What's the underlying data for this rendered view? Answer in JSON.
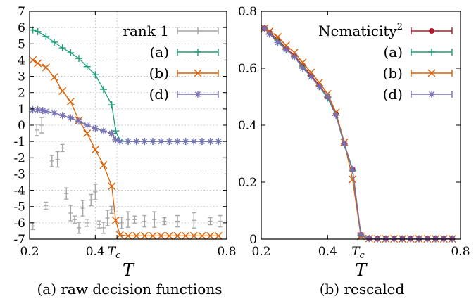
{
  "colors": {
    "gray": "#a6a6a6",
    "green": "#1b9e77",
    "orange": "#d95f02",
    "purple": "#7570b3",
    "red": "#b2182b"
  },
  "chart_data": [
    {
      "type": "line",
      "caption": "(a) raw decision functions",
      "xlabel": "T",
      "ylabel": "",
      "xlim": [
        0.2,
        0.8
      ],
      "ylim": [
        -7,
        7
      ],
      "xticks": [
        {
          "v": 0.2,
          "label": "0.2"
        },
        {
          "v": 0.4,
          "label": "0.4"
        },
        {
          "v": 0.8,
          "label": "0.8"
        }
      ],
      "yticks": [
        -7,
        -6,
        -5,
        -4,
        -3,
        -2,
        -1,
        0,
        1,
        2,
        3,
        4,
        5,
        6,
        7
      ],
      "special_tick": {
        "v": 0.466,
        "label": "T",
        "sub": "c"
      },
      "grid": "dotted",
      "legend": "top-right",
      "series": [
        {
          "name": "rank 1",
          "style": "errorbar",
          "color": "#a6a6a6",
          "x": [
            0.21,
            0.222,
            0.237,
            0.25,
            0.268,
            0.285,
            0.3,
            0.312,
            0.325,
            0.337,
            0.35,
            0.362,
            0.375,
            0.387,
            0.4,
            0.412,
            0.425,
            0.437,
            0.45,
            0.48,
            0.5,
            0.52,
            0.55,
            0.58,
            0.61,
            0.65,
            0.7,
            0.75,
            0.78
          ],
          "y": [
            -6.2,
            -0.3,
            0,
            -4.95,
            -2.2,
            -2.1,
            -1.4,
            -4.2,
            -5.4,
            -5.8,
            -6.3,
            -5.1,
            -6,
            -4.6,
            -4.1,
            -6.1,
            -6.3,
            -5.7,
            -5.2,
            -6,
            -5.8,
            -5.8,
            -5.9,
            -5.8,
            -5.9,
            -5.9,
            -5.85,
            -5.9,
            -5.9
          ]
        },
        {
          "name": "(a)",
          "marker": "plus",
          "color": "#1b9e77",
          "x": [
            0.21,
            0.225,
            0.25,
            0.275,
            0.3,
            0.325,
            0.35,
            0.375,
            0.4,
            0.425,
            0.45,
            0.462,
            0.475,
            0.5,
            0.525,
            0.55,
            0.575,
            0.6,
            0.625,
            0.65,
            0.675,
            0.7,
            0.725,
            0.75,
            0.775
          ],
          "y": [
            5.85,
            5.75,
            5.45,
            5.1,
            4.75,
            4.45,
            4.1,
            3.6,
            3.1,
            2.2,
            1.25,
            -0.35,
            -0.95,
            -1,
            -1,
            -1,
            -1,
            -1,
            -1,
            -1,
            -1,
            -1,
            -1,
            -1,
            -1
          ]
        },
        {
          "name": "(b)",
          "marker": "x",
          "color": "#d95f02",
          "x": [
            0.21,
            0.225,
            0.25,
            0.275,
            0.3,
            0.325,
            0.35,
            0.375,
            0.4,
            0.425,
            0.45,
            0.462,
            0.475,
            0.5,
            0.525,
            0.55,
            0.575,
            0.6,
            0.625,
            0.65,
            0.675,
            0.7,
            0.725,
            0.75,
            0.775
          ],
          "y": [
            4.0,
            3.8,
            3.55,
            2.95,
            2.1,
            1.45,
            0.3,
            -0.5,
            -1.5,
            -2.45,
            -3.75,
            -5.85,
            -6.75,
            -6.8,
            -6.8,
            -6.8,
            -6.8,
            -6.8,
            -6.8,
            -6.8,
            -6.8,
            -6.8,
            -6.8,
            -6.8,
            -6.8
          ]
        },
        {
          "name": "(d)",
          "marker": "star",
          "color": "#7570b3",
          "x": [
            0.21,
            0.225,
            0.24,
            0.25,
            0.275,
            0.3,
            0.325,
            0.35,
            0.375,
            0.4,
            0.425,
            0.45,
            0.462,
            0.475,
            0.5,
            0.525,
            0.55,
            0.575,
            0.6,
            0.625,
            0.65,
            0.675,
            0.7,
            0.725,
            0.75,
            0.775
          ],
          "y": [
            0.95,
            0.95,
            0.9,
            0.85,
            0.75,
            0.6,
            0.45,
            0.25,
            0,
            -0.2,
            -0.35,
            -0.5,
            -0.9,
            -1,
            -1,
            -1,
            -1,
            -1,
            -1,
            -1,
            -1,
            -1,
            -1,
            -1,
            -1,
            -1
          ]
        }
      ]
    },
    {
      "type": "line",
      "caption": "(b) rescaled",
      "xlabel": "T",
      "ylabel": "",
      "xlim": [
        0.2,
        0.8
      ],
      "ylim": [
        0,
        0.8
      ],
      "xticks": [
        {
          "v": 0.2,
          "label": "0.2"
        },
        {
          "v": 0.4,
          "label": "0.4"
        },
        {
          "v": 0.8,
          "label": "0.8"
        }
      ],
      "yticks": [
        0,
        0.2,
        0.4,
        0.6,
        0.8
      ],
      "special_tick": {
        "v": 0.5,
        "label": "T",
        "sub": "c"
      },
      "legend": "top-right",
      "series": [
        {
          "name": "Nematicity",
          "name_sup": "2",
          "marker": "circle",
          "color": "#b2182b",
          "x": [
            0.21,
            0.225,
            0.25,
            0.275,
            0.3,
            0.325,
            0.35,
            0.375,
            0.4,
            0.425,
            0.45,
            0.475,
            0.5,
            0.525,
            0.55,
            0.575,
            0.6,
            0.625,
            0.65,
            0.675,
            0.7,
            0.725,
            0.75,
            0.775
          ],
          "y": [
            0.74,
            0.725,
            0.7,
            0.67,
            0.645,
            0.61,
            0.575,
            0.54,
            0.5,
            0.44,
            0.335,
            0.245,
            0.015,
            0.002,
            0.001,
            0.001,
            0.001,
            0.001,
            0.001,
            0.001,
            0.001,
            0.001,
            0.001,
            0.001
          ]
        },
        {
          "name": "(a)",
          "marker": "plus",
          "color": "#1b9e77",
          "x": [
            0.21,
            0.225,
            0.25,
            0.275,
            0.3,
            0.325,
            0.35,
            0.375,
            0.4,
            0.425,
            0.45,
            0.475,
            0.5,
            0.525,
            0.55,
            0.575,
            0.6,
            0.625,
            0.65,
            0.675,
            0.7,
            0.725,
            0.75,
            0.775
          ],
          "y": [
            0.74,
            0.72,
            0.695,
            0.665,
            0.64,
            0.605,
            0.57,
            0.535,
            0.495,
            0.435,
            0.33,
            0.24,
            0.012,
            0.002,
            0.001,
            0.001,
            0.001,
            0.001,
            0.001,
            0.001,
            0.001,
            0.001,
            0.001,
            0.001
          ]
        },
        {
          "name": "(b)",
          "marker": "x",
          "color": "#d95f02",
          "x": [
            0.21,
            0.225,
            0.25,
            0.275,
            0.3,
            0.325,
            0.35,
            0.375,
            0.4,
            0.425,
            0.45,
            0.475,
            0.5,
            0.525,
            0.55,
            0.575,
            0.6,
            0.625,
            0.65,
            0.675,
            0.7,
            0.725,
            0.75,
            0.775
          ],
          "y": [
            0.74,
            0.73,
            0.71,
            0.68,
            0.655,
            0.62,
            0.585,
            0.55,
            0.51,
            0.445,
            0.34,
            0.21,
            0.01,
            0.002,
            0.001,
            0.001,
            0.001,
            0.001,
            0.001,
            0.001,
            0.001,
            0.001,
            0.001,
            0.001
          ]
        },
        {
          "name": "(d)",
          "marker": "star",
          "color": "#7570b3",
          "x": [
            0.21,
            0.225,
            0.25,
            0.275,
            0.3,
            0.325,
            0.35,
            0.375,
            0.4,
            0.425,
            0.45,
            0.475,
            0.5,
            0.525,
            0.55,
            0.575,
            0.6,
            0.625,
            0.65,
            0.675,
            0.7,
            0.725,
            0.75,
            0.775
          ],
          "y": [
            0.74,
            0.72,
            0.69,
            0.665,
            0.64,
            0.6,
            0.57,
            0.535,
            0.5,
            0.435,
            0.335,
            0.245,
            0.015,
            0.002,
            0.001,
            0.001,
            0.001,
            0.001,
            0.001,
            0.001,
            0.001,
            0.001,
            0.001,
            0.001
          ]
        }
      ]
    }
  ]
}
